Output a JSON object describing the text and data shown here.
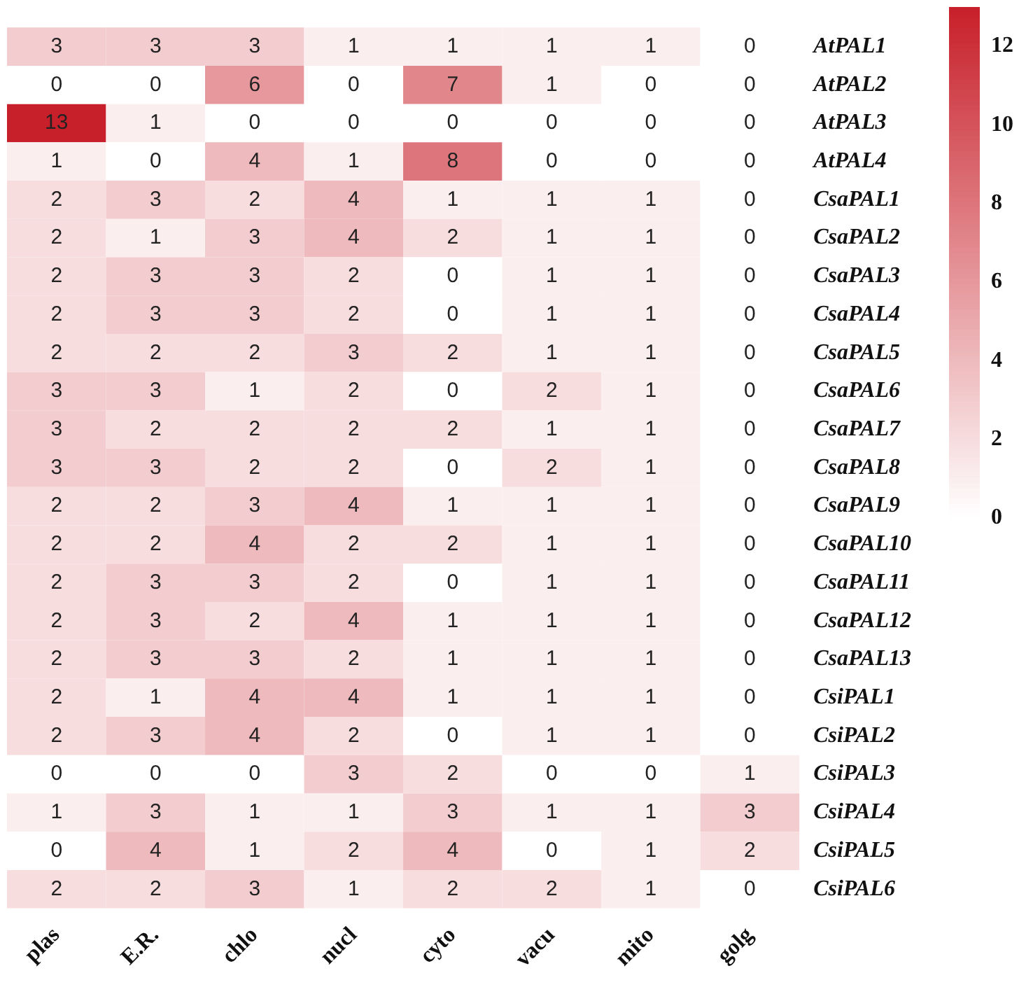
{
  "chart_data": {
    "type": "heatmap",
    "categories": [
      "plas",
      "E.R.",
      "chlo",
      "nucl",
      "cyto",
      "vacu",
      "mito",
      "golg"
    ],
    "y_categories": [
      "AtPAL1",
      "AtPAL2",
      "AtPAL3",
      "AtPAL4",
      "CsaPAL1",
      "CsaPAL2",
      "CsaPAL3",
      "CsaPAL4",
      "CsaPAL5",
      "CsaPAL6",
      "CsaPAL7",
      "CsaPAL8",
      "CsaPAL9",
      "CsaPAL10",
      "CsaPAL11",
      "CsaPAL12",
      "CsaPAL13",
      "CsiPAL1",
      "CsiPAL2",
      "CsiPAL3",
      "CsiPAL4",
      "CsiPAL5",
      "CsiPAL6"
    ],
    "cells": [
      [
        3,
        3,
        3,
        1,
        1,
        1,
        1,
        0
      ],
      [
        0,
        0,
        6,
        0,
        7,
        1,
        0,
        0
      ],
      [
        13,
        1,
        0,
        0,
        0,
        0,
        0,
        0
      ],
      [
        1,
        0,
        4,
        1,
        8,
        0,
        0,
        0
      ],
      [
        2,
        3,
        2,
        4,
        1,
        1,
        1,
        0
      ],
      [
        2,
        1,
        3,
        4,
        2,
        1,
        1,
        0
      ],
      [
        2,
        3,
        3,
        2,
        0,
        1,
        1,
        0
      ],
      [
        2,
        3,
        3,
        2,
        0,
        1,
        1,
        0
      ],
      [
        2,
        2,
        2,
        3,
        2,
        1,
        1,
        0
      ],
      [
        3,
        3,
        1,
        2,
        0,
        2,
        1,
        0
      ],
      [
        3,
        2,
        2,
        2,
        2,
        1,
        1,
        0
      ],
      [
        3,
        3,
        2,
        2,
        0,
        2,
        1,
        0
      ],
      [
        2,
        2,
        3,
        4,
        1,
        1,
        1,
        0
      ],
      [
        2,
        2,
        4,
        2,
        2,
        1,
        1,
        0
      ],
      [
        2,
        3,
        3,
        2,
        0,
        1,
        1,
        0
      ],
      [
        2,
        3,
        2,
        4,
        1,
        1,
        1,
        0
      ],
      [
        2,
        3,
        3,
        2,
        1,
        1,
        1,
        0
      ],
      [
        2,
        1,
        4,
        4,
        1,
        1,
        1,
        0
      ],
      [
        2,
        3,
        4,
        2,
        0,
        1,
        1,
        0
      ],
      [
        0,
        0,
        0,
        3,
        2,
        0,
        0,
        1
      ],
      [
        1,
        3,
        1,
        1,
        3,
        1,
        1,
        3
      ],
      [
        0,
        4,
        1,
        2,
        4,
        0,
        1,
        2
      ],
      [
        2,
        2,
        3,
        1,
        2,
        2,
        1,
        0
      ]
    ],
    "clim": [
      0,
      13
    ],
    "cticks": [
      0,
      2,
      4,
      6,
      8,
      10,
      12
    ],
    "colors": [
      "#ffffff",
      "#c8202a"
    ],
    "data_labels": true,
    "grid": false,
    "legend": false
  }
}
